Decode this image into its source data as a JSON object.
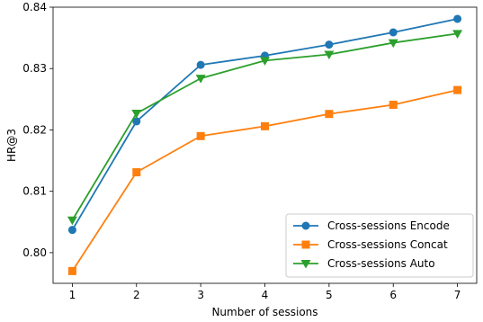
{
  "chart_data": {
    "type": "line",
    "title": "",
    "xlabel": "Number of sessions",
    "ylabel": "HR@3",
    "x": [
      1,
      2,
      3,
      4,
      5,
      6,
      7
    ],
    "xlim": [
      0.7,
      7.3
    ],
    "ylim": [
      0.795,
      0.84
    ],
    "xticks": [
      "1",
      "2",
      "3",
      "4",
      "5",
      "6",
      "7"
    ],
    "yticks": [
      "0.80",
      "0.81",
      "0.82",
      "0.83",
      "0.84"
    ],
    "grid": false,
    "legend_position": "lower-right",
    "series": [
      {
        "name": "Cross-sessions Encode",
        "color": "#1f77b4",
        "marker": "circle",
        "values": [
          0.8037,
          0.8214,
          0.8306,
          0.8321,
          0.8339,
          0.8359,
          0.8381
        ]
      },
      {
        "name": "Cross-sessions Concat",
        "color": "#ff7f0e",
        "marker": "square",
        "values": [
          0.797,
          0.8131,
          0.819,
          0.8206,
          0.8226,
          0.8241,
          0.8265
        ]
      },
      {
        "name": "Cross-sessions Auto",
        "color": "#2ca02c",
        "marker": "triangle-down",
        "values": [
          0.8053,
          0.8227,
          0.8284,
          0.8313,
          0.8323,
          0.8342,
          0.8357
        ]
      }
    ]
  }
}
